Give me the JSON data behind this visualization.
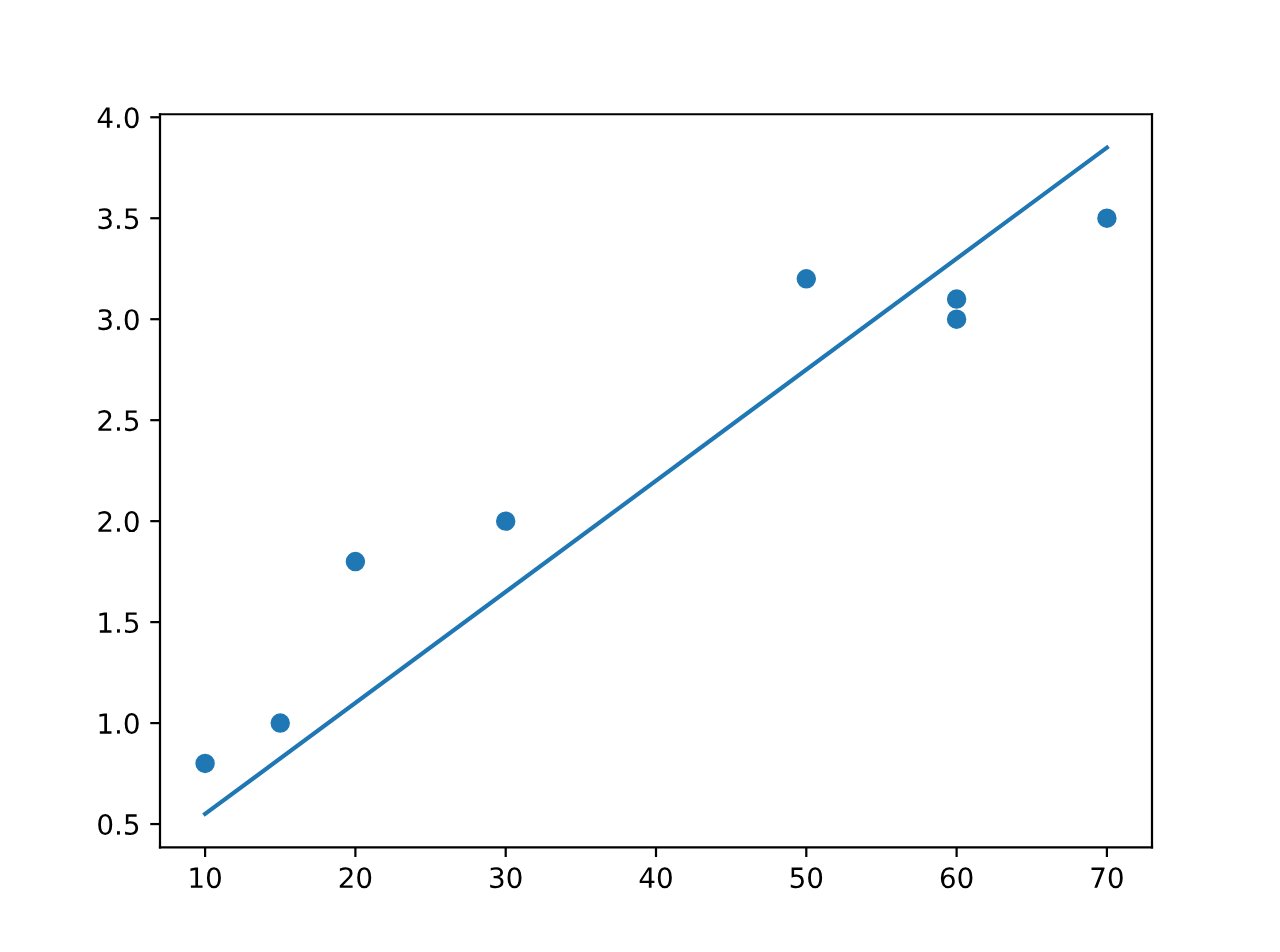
{
  "chart_data": {
    "type": "scatter",
    "series": [
      {
        "color": "#1f77b4",
        "marker": "circle",
        "x": [
          10,
          15,
          20,
          30,
          50,
          60,
          60,
          70
        ],
        "values": [
          0.8,
          1.0,
          1.8,
          2.0,
          3.2,
          3.1,
          3.0,
          3.5
        ]
      },
      {
        "type": "line",
        "color": "#1f77b4",
        "marker": "none",
        "x": [
          10,
          70
        ],
        "values": [
          0.55,
          3.85
        ]
      }
    ],
    "xlim": [
      7,
      73
    ],
    "ylim": [
      0.385,
      4.015
    ],
    "xticks": [
      10,
      20,
      30,
      40,
      50,
      60,
      70
    ],
    "yticks": [
      {
        "value": 0.5,
        "label": "0.5"
      },
      {
        "value": 1.0,
        "label": "1.0"
      },
      {
        "value": 1.5,
        "label": "1.5"
      },
      {
        "value": 2.0,
        "label": "2.0"
      },
      {
        "value": 2.5,
        "label": "2.5"
      },
      {
        "value": 3.0,
        "label": "3.0"
      },
      {
        "value": 3.5,
        "label": "3.5"
      },
      {
        "value": 4.0,
        "label": "4.0"
      }
    ],
    "grid": false
  }
}
